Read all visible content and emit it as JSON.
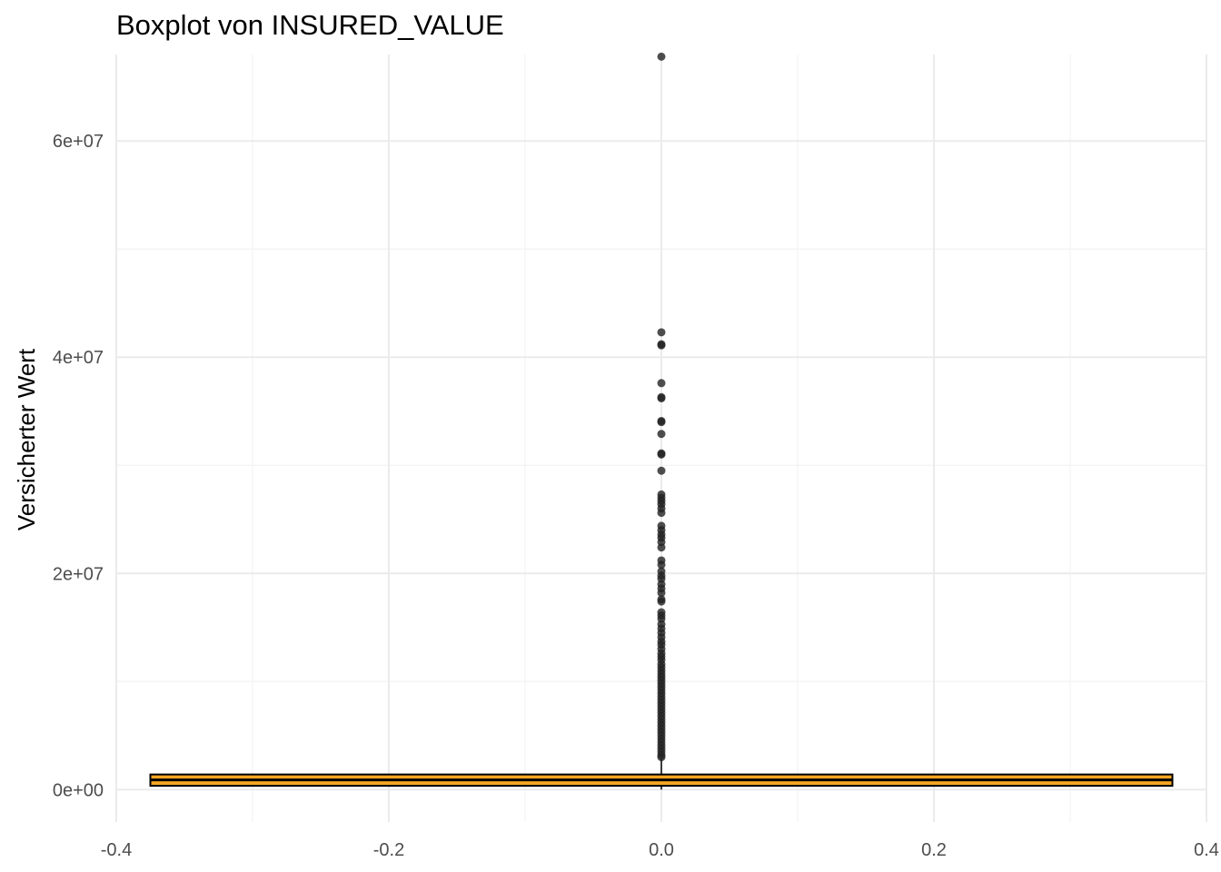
{
  "chart_data": {
    "type": "boxplot",
    "title": "Boxplot von INSURED_VALUE",
    "xlabel": "",
    "ylabel": "Versicherter Wert",
    "xlim": [
      -0.4,
      0.4
    ],
    "ylim": [
      -3000000,
      68000000
    ],
    "x_ticks": [
      -0.4,
      -0.2,
      0.0,
      0.2,
      0.4
    ],
    "x_tick_labels": [
      "-0.4",
      "-0.2",
      "0.0",
      "0.2",
      "0.4"
    ],
    "y_ticks": [
      0,
      20000000,
      40000000,
      60000000
    ],
    "y_tick_labels": [
      "0e+00",
      "2e+07",
      "4e+07",
      "6e+07"
    ],
    "grid": true,
    "legend": "none",
    "box": {
      "x": 0.0,
      "width": 0.75,
      "whisker_low": 0,
      "q1": 350000,
      "median": 900000,
      "q3": 1400000,
      "whisker_high": 2900000
    },
    "outliers": [
      67800000,
      42300000,
      41200000,
      41100000,
      37600000,
      36300000,
      36200000,
      34100000,
      34000000,
      32900000,
      31100000,
      31000000,
      29500000,
      27300000,
      27000000,
      26700000,
      26400000,
      26000000,
      25600000,
      24400000,
      24000000,
      23600000,
      23300000,
      22900000,
      22400000,
      21200000,
      20800000,
      20200000,
      19800000,
      19500000,
      19000000,
      18600000,
      18200000,
      17600000,
      17400000,
      16400000,
      16100000,
      15800000,
      15300000,
      14900000,
      14500000,
      14100000,
      13700000,
      13400000,
      13000000,
      12600000,
      12300000,
      12000000,
      11600000,
      11300000,
      11000000,
      10700000,
      10400000,
      10100000,
      9800000,
      9500000,
      9200000,
      8900000,
      8600000,
      8300000,
      8000000,
      7700000,
      7400000,
      7100000,
      6800000,
      6500000,
      6200000,
      5900000,
      5600000,
      5300000,
      5000000,
      4700000,
      4400000,
      4100000,
      3800000,
      3500000,
      3200000,
      3000000
    ],
    "colors": {
      "box_fill": "#f5a623",
      "box_line": "#000000",
      "point": "#222222",
      "grid_major": "#ebebeb",
      "grid_minor": "#f3f3f3",
      "tick_text": "#4d4d4d"
    }
  }
}
